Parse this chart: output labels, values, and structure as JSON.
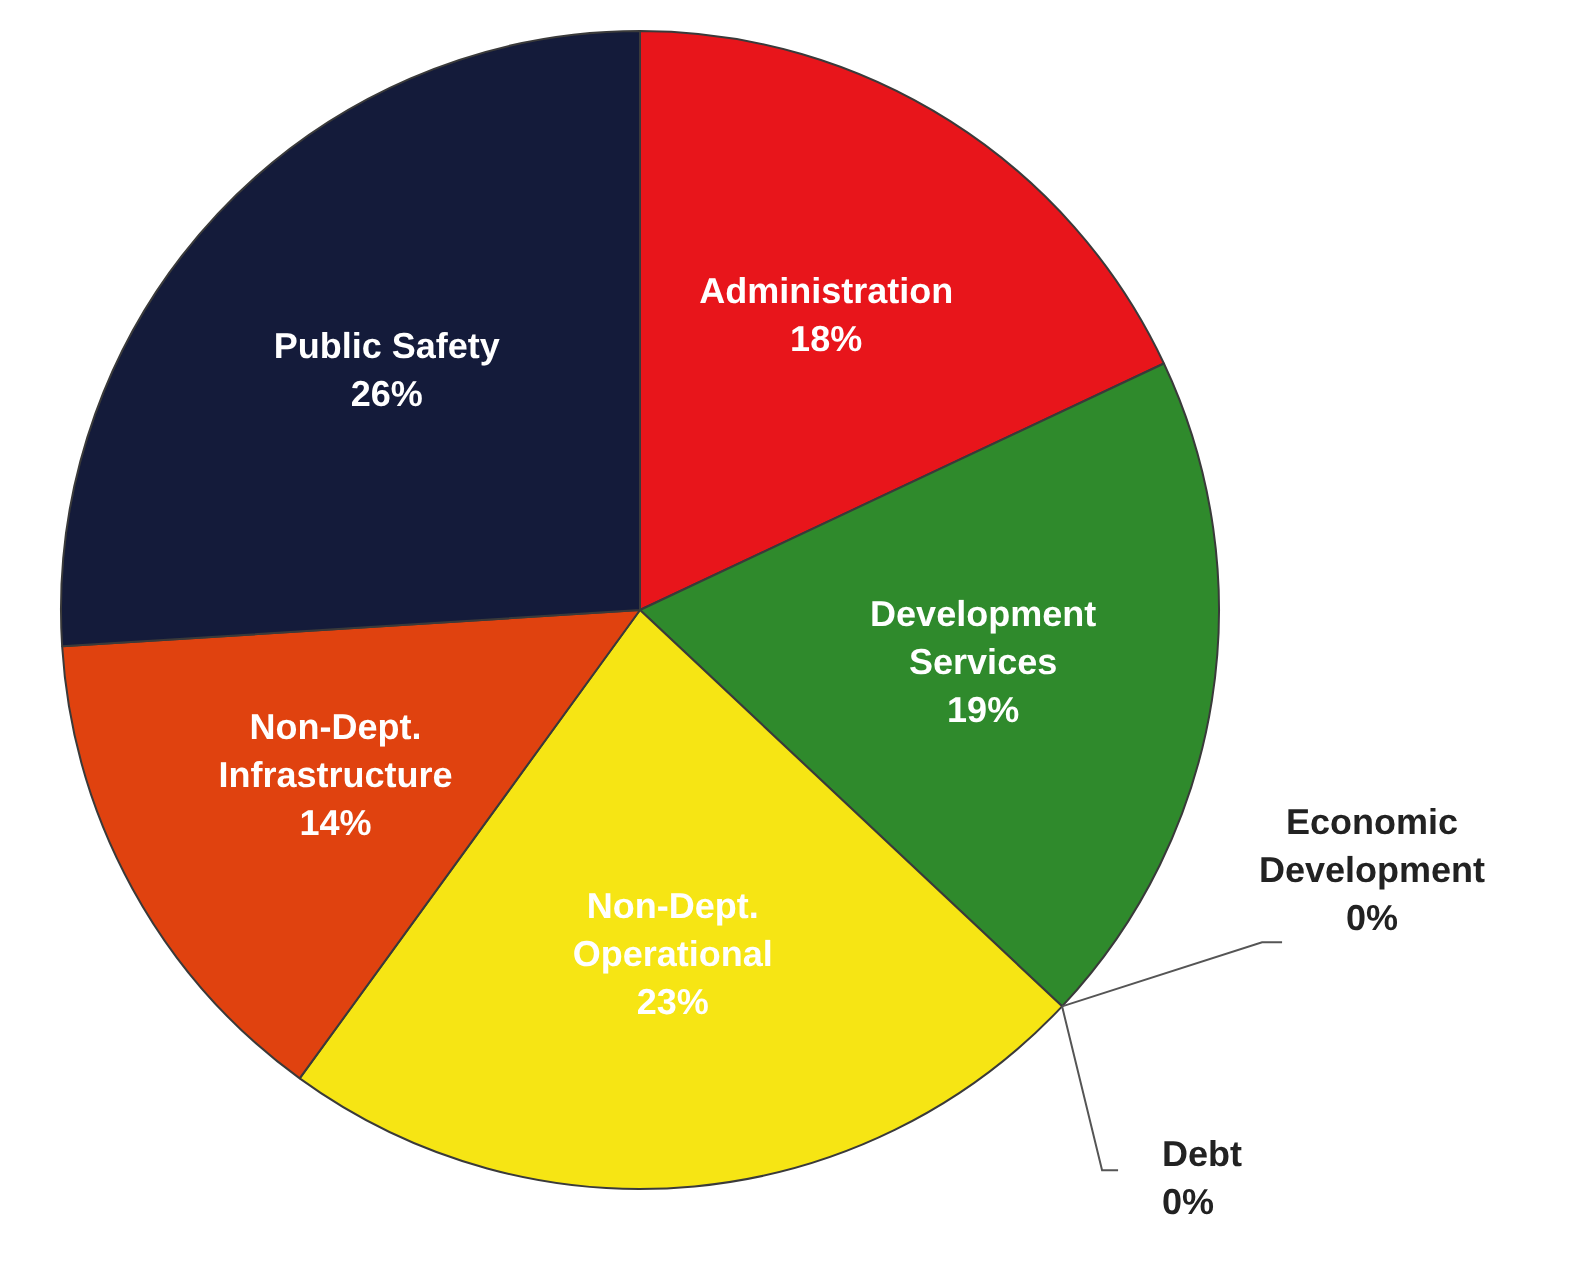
{
  "chart_data": {
    "type": "pie",
    "categories": [
      "Administration",
      "Development Services",
      "Economic Development",
      "Debt",
      "Non-Dept. Operational",
      "Non-Dept. Infrastructure",
      "Public Safety"
    ],
    "values": [
      18,
      19,
      0,
      0,
      23,
      14,
      26
    ],
    "colors": [
      "#e8151b",
      "#2f8a2c",
      "#8c8c8c",
      "#8c8c8c",
      "#f6e514",
      "#e0420f",
      "#141b3a"
    ],
    "value_labels": [
      "18%",
      "19%",
      "0%",
      "0%",
      "23%",
      "14%",
      "26%"
    ],
    "legend": false
  }
}
